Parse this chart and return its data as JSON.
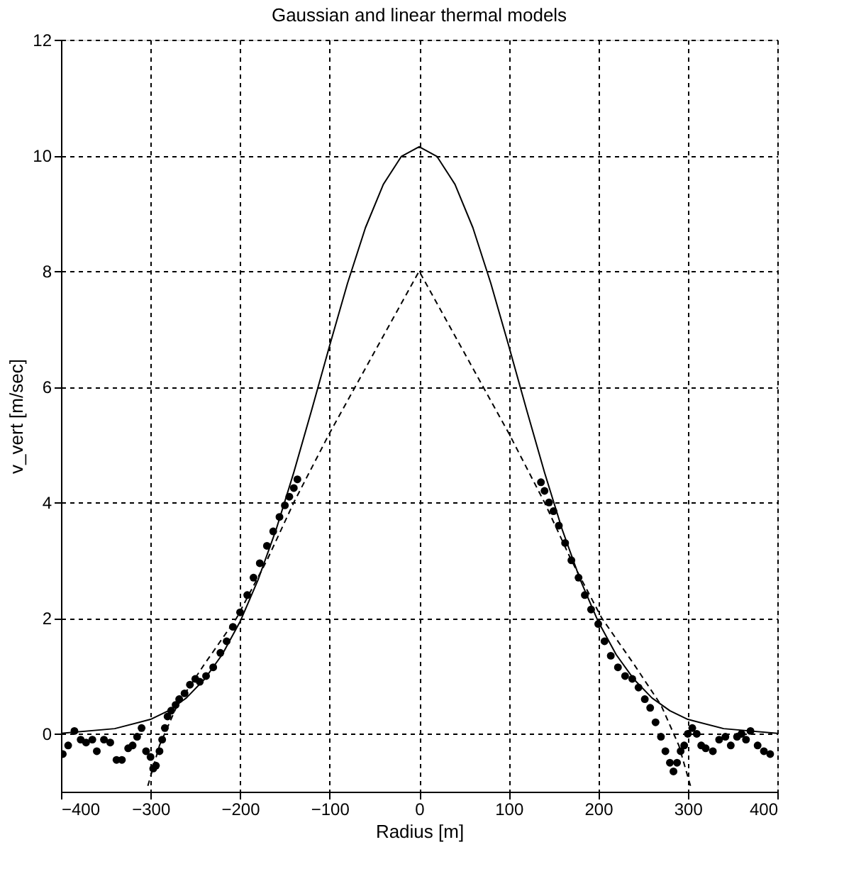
{
  "chart_data": {
    "type": "scatter",
    "title": "Gaussian and linear thermal models",
    "xlabel": "Radius [m]",
    "ylabel": "v_vert [m/sec]",
    "xlim": [
      -400,
      400
    ],
    "ylim": [
      -1,
      12
    ],
    "xticks": [
      -400,
      -300,
      -200,
      -100,
      0,
      100,
      200,
      300,
      400
    ],
    "yticks": [
      0,
      2,
      4,
      6,
      8,
      10,
      12
    ],
    "grid": true,
    "series": [
      {
        "type": "scatter",
        "color": "#000000",
        "marker": "circle",
        "x": [
          -398,
          -392,
          -385,
          -378,
          -372,
          -365,
          -360,
          -352,
          -345,
          -338,
          -332,
          -325,
          -320,
          -315,
          -310,
          -305,
          -300,
          -297,
          -294,
          -290,
          -287,
          -284,
          -281,
          -277,
          -272,
          -268,
          -262,
          -256,
          -250,
          -245,
          -238,
          -230,
          -222,
          -215,
          -208,
          -200,
          -192,
          -185,
          -178,
          -170,
          -163,
          -156,
          -150,
          -145,
          -140,
          -136,
          136,
          140,
          145,
          150,
          156,
          163,
          170,
          178,
          185,
          192,
          200,
          207,
          214,
          222,
          230,
          238,
          245,
          252,
          258,
          264,
          270,
          275,
          280,
          284,
          288,
          292,
          296,
          300,
          305,
          310,
          315,
          320,
          328,
          335,
          342,
          348,
          355,
          360,
          365,
          370,
          378,
          385,
          392
        ],
        "values": [
          -0.35,
          -0.2,
          0.05,
          -0.1,
          -0.15,
          -0.1,
          -0.3,
          -0.1,
          -0.15,
          -0.45,
          -0.45,
          -0.25,
          -0.2,
          -0.05,
          0.1,
          -0.3,
          -0.4,
          -0.6,
          -0.55,
          -0.3,
          -0.1,
          0.1,
          0.3,
          0.4,
          0.5,
          0.6,
          0.7,
          0.85,
          0.95,
          0.9,
          1.0,
          1.15,
          1.4,
          1.6,
          1.85,
          2.1,
          2.4,
          2.7,
          2.95,
          3.25,
          3.5,
          3.75,
          3.95,
          4.1,
          4.25,
          4.4,
          4.35,
          4.2,
          4.0,
          3.85,
          3.6,
          3.3,
          3.0,
          2.7,
          2.4,
          2.15,
          1.9,
          1.6,
          1.35,
          1.15,
          1.0,
          0.95,
          0.8,
          0.6,
          0.45,
          0.2,
          -0.05,
          -0.3,
          -0.5,
          -0.65,
          -0.5,
          -0.3,
          -0.2,
          0.0,
          0.1,
          0.0,
          -0.2,
          -0.25,
          -0.3,
          -0.1,
          -0.05,
          -0.2,
          -0.05,
          0.0,
          -0.1,
          0.05,
          -0.2,
          -0.3,
          -0.35
        ]
      },
      {
        "type": "line",
        "color": "#000000",
        "line_style": "solid",
        "marker": "none",
        "x": [
          -400,
          -340,
          -300,
          -280,
          -260,
          -240,
          -220,
          -200,
          -180,
          -160,
          -140,
          -120,
          -100,
          -80,
          -60,
          -40,
          -20,
          0,
          20,
          40,
          60,
          80,
          100,
          120,
          140,
          160,
          180,
          200,
          220,
          240,
          260,
          280,
          300,
          340,
          400
        ],
        "values": [
          0.01,
          0.09,
          0.25,
          0.4,
          0.62,
          0.94,
          1.37,
          1.94,
          2.66,
          3.52,
          4.52,
          5.6,
          6.71,
          7.79,
          8.75,
          9.5,
          9.98,
          10.15,
          9.98,
          9.5,
          8.75,
          7.79,
          6.71,
          5.6,
          4.52,
          3.52,
          2.66,
          1.94,
          1.37,
          0.94,
          0.62,
          0.4,
          0.25,
          0.09,
          0.01
        ]
      },
      {
        "type": "line",
        "color": "#000000",
        "line_style": "dashed",
        "marker": "none",
        "x": [
          -303,
          -290,
          -270,
          -240,
          -204,
          -170,
          -140,
          -100,
          -50,
          0,
          50,
          100,
          140,
          170,
          204,
          240,
          270,
          290,
          303
        ],
        "values": [
          -0.9,
          -0.2,
          0.5,
          1.2,
          2.0,
          3.0,
          4.0,
          5.2,
          6.6,
          8.0,
          6.6,
          5.2,
          4.0,
          3.0,
          2.0,
          1.2,
          0.5,
          -0.2,
          -0.9
        ]
      }
    ]
  }
}
